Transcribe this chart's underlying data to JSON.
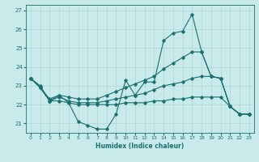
{
  "xlabel": "Humidex (Indice chaleur)",
  "xlim": [
    -0.5,
    23.5
  ],
  "ylim": [
    20.5,
    27.3
  ],
  "yticks": [
    21,
    22,
    23,
    24,
    25,
    26,
    27
  ],
  "xticks": [
    0,
    1,
    2,
    3,
    4,
    5,
    6,
    7,
    8,
    9,
    10,
    11,
    12,
    13,
    14,
    15,
    16,
    17,
    18,
    19,
    20,
    21,
    22,
    23
  ],
  "bg_color": "#c8eaea",
  "grid_color": "#b0d4d4",
  "line_color": "#1a7070",
  "lines": [
    {
      "x": [
        0,
        1,
        2,
        3,
        4,
        5,
        6,
        7,
        8,
        9,
        10,
        11,
        12,
        13,
        14,
        15,
        16,
        17,
        18,
        19,
        20,
        21,
        22,
        23
      ],
      "y": [
        23.4,
        23.0,
        22.2,
        22.5,
        22.1,
        21.1,
        20.9,
        20.7,
        20.7,
        21.5,
        23.3,
        22.5,
        23.2,
        23.2,
        25.4,
        25.8,
        25.9,
        26.8,
        24.8,
        23.5,
        23.4,
        21.9,
        21.5,
        21.5
      ]
    },
    {
      "x": [
        0,
        1,
        2,
        3,
        4,
        5,
        6,
        7,
        8,
        9,
        10,
        11,
        12,
        13,
        14,
        15,
        16,
        17,
        18,
        19,
        20,
        21,
        22,
        23
      ],
      "y": [
        23.4,
        22.9,
        22.3,
        22.5,
        22.4,
        22.3,
        22.3,
        22.3,
        22.5,
        22.7,
        22.9,
        23.1,
        23.3,
        23.5,
        23.9,
        24.2,
        24.5,
        24.8,
        24.8,
        23.5,
        23.4,
        21.9,
        21.5,
        21.5
      ]
    },
    {
      "x": [
        0,
        1,
        2,
        3,
        4,
        5,
        6,
        7,
        8,
        9,
        10,
        11,
        12,
        13,
        14,
        15,
        16,
        17,
        18,
        19,
        20,
        21,
        22,
        23
      ],
      "y": [
        23.4,
        22.9,
        22.2,
        22.4,
        22.2,
        22.1,
        22.1,
        22.1,
        22.2,
        22.3,
        22.4,
        22.5,
        22.6,
        22.8,
        23.0,
        23.1,
        23.2,
        23.4,
        23.5,
        23.5,
        23.4,
        21.9,
        21.5,
        21.5
      ]
    },
    {
      "x": [
        0,
        1,
        2,
        3,
        4,
        5,
        6,
        7,
        8,
        9,
        10,
        11,
        12,
        13,
        14,
        15,
        16,
        17,
        18,
        19,
        20,
        21,
        22,
        23
      ],
      "y": [
        23.4,
        22.9,
        22.2,
        22.2,
        22.1,
        22.0,
        22.0,
        22.0,
        22.0,
        22.0,
        22.1,
        22.1,
        22.1,
        22.2,
        22.2,
        22.3,
        22.3,
        22.4,
        22.4,
        22.4,
        22.4,
        21.9,
        21.5,
        21.5
      ]
    }
  ]
}
